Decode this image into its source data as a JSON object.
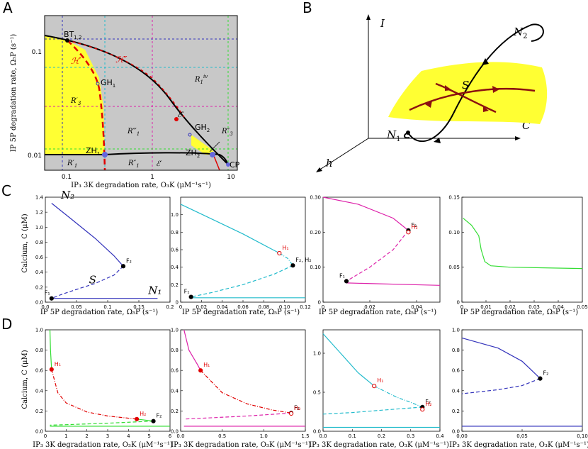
{
  "panels": {
    "A": {
      "letter": "A",
      "xlabel": "IP₃ 3K degradation rate, O₃K (μM⁻¹s⁻¹)",
      "ylabel": "IP 5P degradation rate, Ω₅P (s⁻¹)",
      "xticks": [
        "0.1",
        "1",
        "10"
      ],
      "yticks": [
        "0.1",
        "0.01"
      ],
      "points": [
        "BT1,2",
        "GH1",
        "GH2",
        "ZH1",
        "ZH2",
        "CP"
      ],
      "curves": [
        "ℋ′",
        "ℋ″",
        "ℰ″",
        "ℰ′"
      ],
      "regions": [
        "R1iv",
        "R3′",
        "R1‴",
        "R3″",
        "R1′",
        "R1″"
      ]
    },
    "B": {
      "letter": "B",
      "axes": [
        "I",
        "C",
        "h"
      ],
      "labels": [
        "N2",
        "S",
        "N1"
      ]
    },
    "C": {
      "letter": "C",
      "ylabel": "Calcium, C (μM)",
      "xlabel": "IP 5P degradation rate, Ω₅P (s⁻¹)"
    },
    "D": {
      "letter": "D",
      "ylabel": "Calcium, C (μM)",
      "xlabel": "IP₃ 3K degradation rate, O₃K (μM⁻¹s⁻¹)"
    }
  },
  "colors": {
    "grey": "#c8c8c8",
    "yellow": "#ffff33",
    "red": "#e00000",
    "navy": "#3333bb",
    "cyan": "#22bbcc",
    "magenta": "#dd22aa",
    "green": "#33dd33",
    "maroon": "#8b1010"
  },
  "chart_data": [
    {
      "id": "C1",
      "type": "line",
      "color": "navy",
      "xlim": [
        0,
        0.2
      ],
      "ylim": [
        0,
        1.4
      ],
      "xticks": [
        0,
        0.05,
        0.1,
        0.15,
        0.2
      ],
      "xtick_labels": [
        "0.0",
        "0.05",
        "0.1",
        "0.15",
        "0.2"
      ],
      "yticks": [
        0,
        0.2,
        0.4,
        0.6,
        0.8,
        1.0,
        1.2,
        1.4
      ],
      "ytick_labels": [
        "0.0",
        "0.2",
        "0.4",
        "0.6",
        "0.8",
        "1.0",
        "1.2",
        "1.4"
      ],
      "series": [
        {
          "style": "solid",
          "x": [
            0.01,
            0.04,
            0.08,
            0.11,
            0.125
          ],
          "y": [
            1.32,
            1.12,
            0.85,
            0.62,
            0.48
          ]
        },
        {
          "style": "dashed",
          "x": [
            0.125,
            0.11,
            0.08,
            0.05,
            0.025,
            0.01
          ],
          "y": [
            0.48,
            0.36,
            0.25,
            0.17,
            0.1,
            0.05
          ]
        },
        {
          "style": "solid",
          "x": [
            0.01,
            0.18
          ],
          "y": [
            0.05,
            0.05
          ]
        }
      ],
      "markers": [
        {
          "x": 0.01,
          "y": 0.05,
          "label": "F₁",
          "filled": true
        },
        {
          "x": 0.125,
          "y": 0.48,
          "label": "F₂",
          "filled": true
        }
      ],
      "annotations": [
        {
          "text": "N₂",
          "x": 0.025,
          "y": 1.38
        },
        {
          "text": "S",
          "x": 0.07,
          "y": 0.25
        },
        {
          "text": "N₁",
          "x": 0.165,
          "y": 0.11
        }
      ]
    },
    {
      "id": "C2",
      "type": "line",
      "color": "cyan",
      "xlim": [
        0,
        0.12
      ],
      "ylim": [
        0,
        1.2
      ],
      "xticks": [
        0,
        0.02,
        0.04,
        0.06,
        0.08,
        0.1,
        0.12
      ],
      "xtick_labels": [
        "0",
        "0.02",
        "0.04",
        "0.06",
        "0.08",
        "0.10",
        "0.12"
      ],
      "yticks": [
        0,
        0.2,
        0.4,
        0.6,
        0.8,
        1.0
      ],
      "ytick_labels": [
        "0",
        "0.2",
        "0.4",
        "0.6",
        "0.8",
        "1.0"
      ],
      "series": [
        {
          "style": "solid",
          "x": [
            0.0,
            0.03,
            0.06,
            0.095
          ],
          "y": [
            1.12,
            0.95,
            0.78,
            0.56
          ]
        },
        {
          "style": "dashdot",
          "x": [
            0.095,
            0.103,
            0.108
          ],
          "y": [
            0.56,
            0.5,
            0.42
          ]
        },
        {
          "style": "dashed",
          "x": [
            0.108,
            0.09,
            0.06,
            0.03,
            0.01
          ],
          "y": [
            0.42,
            0.32,
            0.2,
            0.11,
            0.06
          ]
        },
        {
          "style": "solid",
          "x": [
            0.01,
            0.12
          ],
          "y": [
            0.05,
            0.05
          ]
        }
      ],
      "markers": [
        {
          "x": 0.01,
          "y": 0.06,
          "label": "F₁",
          "filled": true
        },
        {
          "x": 0.095,
          "y": 0.56,
          "label": "H₁",
          "filled": false,
          "red": true
        },
        {
          "x": 0.108,
          "y": 0.42,
          "label": "F₂, H₂",
          "filled": true
        }
      ]
    },
    {
      "id": "C3",
      "type": "line",
      "color": "magenta",
      "xlim": [
        0,
        0.05
      ],
      "ylim": [
        0,
        0.3
      ],
      "xticks": [
        0,
        0.02,
        0.04
      ],
      "xtick_labels": [
        "0",
        "0.02",
        "0.04"
      ],
      "yticks": [
        0,
        0.1,
        0.2,
        0.3
      ],
      "ytick_labels": [
        "0",
        "0.10",
        "0.20",
        "0.30"
      ],
      "series": [
        {
          "style": "solid",
          "x": [
            0.0,
            0.015,
            0.03,
            0.0365
          ],
          "y": [
            0.3,
            0.28,
            0.24,
            0.205
          ]
        },
        {
          "style": "dashed",
          "x": [
            0.0365,
            0.03,
            0.02,
            0.01
          ],
          "y": [
            0.205,
            0.15,
            0.1,
            0.06
          ]
        },
        {
          "style": "solid",
          "x": [
            0.01,
            0.05
          ],
          "y": [
            0.055,
            0.048
          ]
        }
      ],
      "markers": [
        {
          "x": 0.01,
          "y": 0.06,
          "label": "F₁",
          "filled": true
        },
        {
          "x": 0.0365,
          "y": 0.205,
          "label": "F₂",
          "filled": true
        },
        {
          "x": 0.0365,
          "y": 0.2,
          "label": "H₂",
          "filled": false,
          "red": true
        }
      ]
    },
    {
      "id": "C4",
      "type": "line",
      "color": "green",
      "xlim": [
        0,
        0.05
      ],
      "ylim": [
        0,
        0.15
      ],
      "xticks": [
        0,
        0.01,
        0.02,
        0.03,
        0.04,
        0.05
      ],
      "xtick_labels": [
        "0",
        "0.01",
        "0.02",
        "0.03",
        "0.04",
        "0.05"
      ],
      "yticks": [
        0,
        0.05,
        0.1,
        0.15
      ],
      "ytick_labels": [
        "0",
        "0.05",
        "0.10",
        "0.15"
      ],
      "series": [
        {
          "style": "solid",
          "x": [
            0.0005,
            0.004,
            0.007,
            0.008,
            0.0095,
            0.012,
            0.02,
            0.05
          ],
          "y": [
            0.12,
            0.11,
            0.095,
            0.075,
            0.058,
            0.052,
            0.05,
            0.048
          ]
        }
      ],
      "markers": []
    },
    {
      "id": "D1",
      "type": "line",
      "color": "green",
      "color2": "red",
      "xlim": [
        0,
        6
      ],
      "ylim": [
        0,
        1.0
      ],
      "xticks": [
        0,
        1,
        2,
        3,
        4,
        5,
        6
      ],
      "xtick_labels": [
        "0",
        "1",
        "2",
        "3",
        "4",
        "5",
        "6"
      ],
      "yticks": [
        0,
        0.2,
        0.4,
        0.6,
        0.8,
        1.0
      ],
      "ytick_labels": [
        "0.0",
        "0.2",
        "0.4",
        "0.6",
        "0.8",
        "1.0"
      ],
      "series": [
        {
          "style": "solid",
          "color": "green",
          "x": [
            0.22,
            0.25,
            0.3
          ],
          "y": [
            1.0,
            0.8,
            0.61
          ]
        },
        {
          "style": "dashdot",
          "color": "red",
          "x": [
            0.3,
            0.6,
            1.0,
            2.0,
            3.0,
            4.4
          ],
          "y": [
            0.61,
            0.38,
            0.28,
            0.19,
            0.15,
            0.12
          ]
        },
        {
          "style": "solid",
          "color": "green",
          "x": [
            4.4,
            5.2
          ],
          "y": [
            0.12,
            0.1
          ]
        },
        {
          "style": "dashed",
          "color": "green",
          "x": [
            5.2,
            3.0,
            1.0,
            0.22
          ],
          "y": [
            0.1,
            0.08,
            0.065,
            0.06
          ]
        },
        {
          "style": "solid",
          "color": "green",
          "x": [
            0.22,
            6.0
          ],
          "y": [
            0.05,
            0.05
          ]
        }
      ],
      "markers": [
        {
          "x": 0.3,
          "y": 0.61,
          "label": "H₁",
          "filled": true,
          "red": true
        },
        {
          "x": 4.4,
          "y": 0.12,
          "label": "H₂",
          "filled": true,
          "red": true
        },
        {
          "x": 5.2,
          "y": 0.1,
          "label": "F₂",
          "filled": true
        }
      ]
    },
    {
      "id": "D2",
      "type": "line",
      "color": "magenta",
      "color2": "red",
      "xlim": [
        0,
        1.5
      ],
      "ylim": [
        0,
        1.0
      ],
      "xticks": [
        0,
        0.5,
        1.0,
        1.5
      ],
      "xtick_labels": [
        "0.0",
        "0.5",
        "1.0",
        "1.5"
      ],
      "yticks": [
        0,
        0.2,
        0.4,
        0.6,
        0.8,
        1.0
      ],
      "ytick_labels": [
        "0.0",
        "0.2",
        "0.4",
        "0.6",
        "0.8",
        "1.0"
      ],
      "series": [
        {
          "style": "solid",
          "color": "magenta",
          "x": [
            0.04,
            0.1,
            0.2,
            0.24
          ],
          "y": [
            1.0,
            0.8,
            0.66,
            0.6
          ]
        },
        {
          "style": "dashdot",
          "color": "red",
          "x": [
            0.24,
            0.5,
            0.8,
            1.1,
            1.33
          ],
          "y": [
            0.6,
            0.38,
            0.27,
            0.21,
            0.18
          ]
        },
        {
          "style": "dashed",
          "color": "magenta",
          "x": [
            1.33,
            0.8,
            0.3,
            0.04
          ],
          "y": [
            0.18,
            0.15,
            0.13,
            0.12
          ]
        },
        {
          "style": "solid",
          "color": "magenta",
          "x": [
            0.04,
            1.5
          ],
          "y": [
            0.05,
            0.05
          ]
        }
      ],
      "markers": [
        {
          "x": 0.24,
          "y": 0.6,
          "label": "H₁",
          "filled": true,
          "red": true
        },
        {
          "x": 1.33,
          "y": 0.18,
          "label": "F₂",
          "filled": true
        },
        {
          "x": 1.33,
          "y": 0.175,
          "label": "H₂",
          "filled": false,
          "red": true
        }
      ]
    },
    {
      "id": "D3",
      "type": "line",
      "color": "cyan",
      "xlim": [
        0,
        0.4
      ],
      "ylim": [
        0,
        1.3
      ],
      "xticks": [
        0,
        0.1,
        0.2,
        0.3,
        0.4
      ],
      "xtick_labels": [
        "0.0",
        "0.1",
        "0.2",
        "0.3",
        "0.4"
      ],
      "yticks": [
        0,
        0.5,
        1.0
      ],
      "ytick_labels": [
        "0.0",
        "0.5",
        "1.0"
      ],
      "series": [
        {
          "style": "solid",
          "x": [
            0.0,
            0.06,
            0.12,
            0.175
          ],
          "y": [
            1.25,
            1.0,
            0.75,
            0.58
          ]
        },
        {
          "style": "dashdot",
          "x": [
            0.175,
            0.25,
            0.3,
            0.34
          ],
          "y": [
            0.58,
            0.44,
            0.37,
            0.31
          ]
        },
        {
          "style": "dashed",
          "x": [
            0.34,
            0.2,
            0.1,
            0.0
          ],
          "y": [
            0.31,
            0.27,
            0.24,
            0.22
          ]
        },
        {
          "style": "solid",
          "x": [
            0.0,
            0.4
          ],
          "y": [
            0.05,
            0.05
          ]
        }
      ],
      "markers": [
        {
          "x": 0.175,
          "y": 0.58,
          "label": "H₁",
          "filled": false,
          "red": true
        },
        {
          "x": 0.34,
          "y": 0.31,
          "label": "F₂",
          "filled": true
        },
        {
          "x": 0.34,
          "y": 0.28,
          "label": "H₂",
          "filled": false,
          "red": true
        }
      ]
    },
    {
      "id": "D4",
      "type": "line",
      "color": "navy",
      "xlim": [
        0,
        0.1
      ],
      "ylim": [
        0,
        1.0
      ],
      "xticks": [
        0,
        0.05,
        0.1
      ],
      "xtick_labels": [
        "0,00",
        "0,05",
        "0,10"
      ],
      "yticks": [
        0,
        0.2,
        0.4,
        0.6,
        0.8,
        1.0
      ],
      "ytick_labels": [
        "0.0",
        "0.2",
        "0.4",
        "0.6",
        "0.8",
        "1.0"
      ],
      "series": [
        {
          "style": "solid",
          "x": [
            0.0,
            0.03,
            0.05,
            0.065
          ],
          "y": [
            0.92,
            0.82,
            0.69,
            0.52
          ]
        },
        {
          "style": "dashed",
          "x": [
            0.065,
            0.05,
            0.03,
            0.0
          ],
          "y": [
            0.52,
            0.45,
            0.41,
            0.37
          ]
        },
        {
          "style": "solid",
          "x": [
            0.0,
            0.1
          ],
          "y": [
            0.05,
            0.05
          ]
        }
      ],
      "markers": [
        {
          "x": 0.065,
          "y": 0.52,
          "label": "F₂",
          "filled": true
        }
      ]
    }
  ]
}
